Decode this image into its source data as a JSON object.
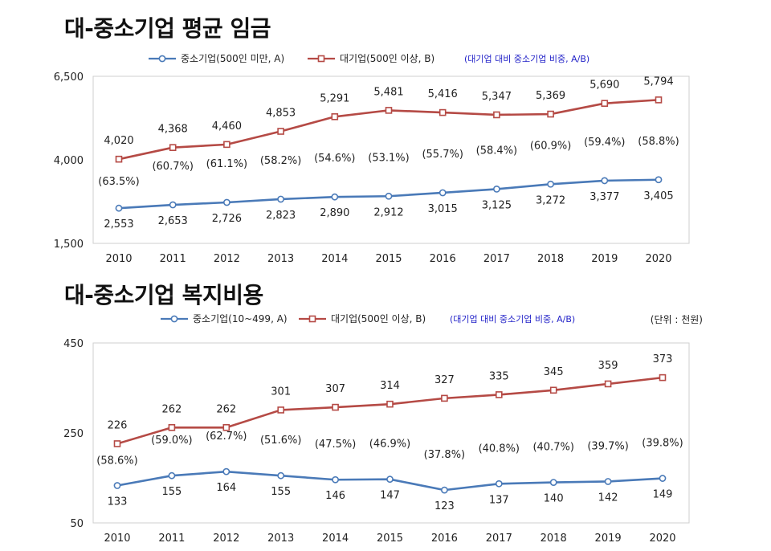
{
  "colors": {
    "small": "#4a7ab8",
    "large": "#b54a45",
    "ratio": "#2323c8",
    "highlight": "#e02020",
    "text": "#222222"
  },
  "chart_data": [
    {
      "type": "line",
      "title": "대-중소기업 평균 임금",
      "legend": {
        "small": "중소기업(500인 미만, A)",
        "large": "대기업(500인 이상, B)",
        "ratio": "(대기업 대비 중소기업 비중, A/B)"
      },
      "unit": "",
      "x": [
        "2010",
        "2011",
        "2012",
        "2013",
        "2014",
        "2015",
        "2016",
        "2017",
        "2018",
        "2019",
        "2020"
      ],
      "ylim": [
        1500,
        6500
      ],
      "yticks": [
        "1,500",
        "4,000",
        "6,500"
      ],
      "yticks_values": [
        1500,
        4000,
        6500
      ],
      "series": [
        {
          "name": "대기업(500인 이상, B)",
          "key": "large",
          "values": [
            4020,
            4368,
            4460,
            4853,
            5291,
            5481,
            5416,
            5347,
            5369,
            5690,
            5794
          ],
          "labels": [
            "4,020",
            "4,368",
            "4,460",
            "4,853",
            "5,291",
            "5,481",
            "5,416",
            "5,347",
            "5,369",
            "5,690",
            "5,794"
          ]
        },
        {
          "name": "중소기업(500인 미만, A)",
          "key": "small",
          "values": [
            2553,
            2653,
            2726,
            2823,
            2890,
            2912,
            3015,
            3125,
            3272,
            3377,
            3405
          ],
          "labels": [
            "2,553",
            "2,653",
            "2,726",
            "2,823",
            "2,890",
            "2,912",
            "3,015",
            "3,125",
            "3,272",
            "3,377",
            "3,405"
          ]
        }
      ],
      "ratio": [
        "(63.5%)",
        "(60.7%)",
        "(61.1%)",
        "(58.2%)",
        "(54.6%)",
        "(53.1%)",
        "(55.7%)",
        "(58.4%)",
        "(60.9%)",
        "(59.4%)",
        "(58.8%)"
      ]
    },
    {
      "type": "line",
      "title": "대-중소기업 복지비용",
      "legend": {
        "small": "중소기업(10~499, A)",
        "large": "대기업(500인 이상, B)",
        "ratio": "(대기업 대비 중소기업 비중, A/B)"
      },
      "unit": "(단위 : 천원)",
      "x": [
        "2010",
        "2011",
        "2012",
        "2013",
        "2014",
        "2015",
        "2016",
        "2017",
        "2018",
        "2019",
        "2020"
      ],
      "ylim": [
        50,
        450
      ],
      "yticks": [
        "50",
        "250",
        "450"
      ],
      "yticks_values": [
        50,
        250,
        450
      ],
      "series": [
        {
          "name": "대기업(500인 이상, B)",
          "key": "large",
          "values": [
            226,
            262,
            262,
            301,
            307,
            314,
            327,
            335,
            345,
            359,
            373
          ],
          "labels": [
            "226",
            "262",
            "262",
            "301",
            "307",
            "314",
            "327",
            "335",
            "345",
            "359",
            "373"
          ]
        },
        {
          "name": "중소기업(10~499, A)",
          "key": "small",
          "values": [
            133,
            155,
            164,
            155,
            146,
            147,
            123,
            137,
            140,
            142,
            149
          ],
          "labels": [
            "133",
            "155",
            "164",
            "155",
            "146",
            "147",
            "123",
            "137",
            "140",
            "142",
            "149"
          ]
        }
      ],
      "ratio": [
        "(58.6%)",
        "(59.0%)",
        "(62.7%)",
        "(51.6%)",
        "(47.5%)",
        "(46.9%)",
        "(37.8%)",
        "(40.8%)",
        "(40.7%)",
        "(39.7%)",
        "(39.8%)"
      ]
    }
  ]
}
